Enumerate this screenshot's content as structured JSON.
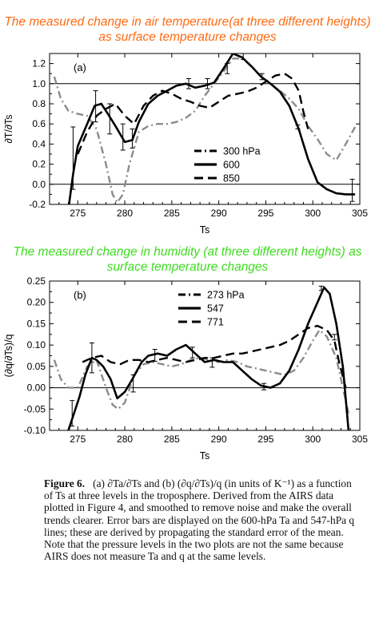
{
  "titles": {
    "air": {
      "text": "The measured change in air temperature(at three different heights) as surface temperature changes",
      "color": "#ff6a13"
    },
    "humidity": {
      "text": "The measured change in humidity (at three different heights) as surface temperature changes",
      "color": "#3ddc1f"
    }
  },
  "caption": {
    "label": "Figure 6.",
    "text": "(a) ∂Ta/∂Ts and (b) (∂q/∂Ts)/q (in units of K⁻¹) as a function of Ts at three levels in the troposphere. Derived from the AIRS data plotted in Figure 4, and smoothed to remove noise and make the overall trends clearer. Error bars are displayed on the 600-hPa Ta and 547-hPa q lines; these are derived by propagating the standard error of the mean. Note that the pressure levels in the two plots are not the same because AIRS does not measure Ta and q at the same levels."
  },
  "chart_data": [
    {
      "type": "line",
      "panel_label": "(a)",
      "xlabel": "Ts",
      "ylabel": "∂T/∂Ts",
      "xlim": [
        272,
        305
      ],
      "ylim": [
        -0.2,
        1.3
      ],
      "xticks": [
        275,
        280,
        285,
        290,
        295,
        300,
        305
      ],
      "yticks": [
        -0.2,
        0.0,
        0.2,
        0.4,
        0.6,
        0.8,
        1.0,
        1.2
      ],
      "ytick_labels": [
        "-0.2",
        "0.0",
        "0.2",
        "0.4",
        "0.6",
        "0.8",
        "1.0",
        "1.2"
      ],
      "hlines": [
        0.0,
        1.0
      ],
      "legend": {
        "position": "lower-right",
        "entries": [
          "300 hPa",
          "600",
          "850"
        ]
      },
      "series": [
        {
          "name": "300 hPa",
          "style": "dashdot",
          "x": [
            272.5,
            273.2,
            274,
            275,
            276,
            277,
            278,
            278.7,
            279.2,
            279.8,
            280.5,
            281.5,
            282.5,
            283.5,
            284.5,
            285.5,
            286.5,
            287.5,
            288.5,
            289.5,
            290.5,
            291.5,
            292.5,
            293.5,
            294.5,
            295.5,
            296.5,
            297.5,
            298.5,
            299.5,
            300.5,
            301.5,
            302.5,
            303.5,
            304.5
          ],
          "y": [
            1.07,
            0.85,
            0.73,
            0.7,
            0.68,
            0.55,
            0.2,
            -0.1,
            -0.18,
            -0.1,
            0.2,
            0.52,
            0.58,
            0.6,
            0.6,
            0.62,
            0.66,
            0.73,
            0.88,
            1.0,
            1.12,
            1.25,
            1.25,
            1.17,
            1.07,
            1.0,
            0.93,
            0.85,
            0.75,
            0.58,
            0.45,
            0.3,
            0.24,
            0.4,
            0.57
          ]
        },
        {
          "name": "600",
          "style": "solid",
          "x": [
            274,
            274.5,
            275,
            276,
            276.8,
            277.5,
            278.2,
            279,
            280,
            280.8,
            281.5,
            282.5,
            283.5,
            284.5,
            285.5,
            286.5,
            287.5,
            288.5,
            289.5,
            290.5,
            291.5,
            292.5,
            293.5,
            294.5,
            295.5,
            296.5,
            297.5,
            298.5,
            299.5,
            300.5,
            301.5,
            302.5,
            303.5,
            304.5
          ],
          "y": [
            -0.25,
            0.1,
            0.38,
            0.6,
            0.78,
            0.8,
            0.7,
            0.58,
            0.42,
            0.44,
            0.62,
            0.8,
            0.88,
            0.93,
            0.98,
            1.0,
            0.96,
            0.98,
            1.01,
            1.15,
            1.3,
            1.26,
            1.17,
            1.07,
            1.0,
            0.92,
            0.78,
            0.55,
            0.25,
            0.02,
            -0.05,
            -0.09,
            -0.1,
            -0.1
          ]
        },
        {
          "name": "850",
          "style": "dashed",
          "x": [
            275,
            276,
            277,
            278,
            279,
            280,
            281,
            282,
            283,
            284,
            285,
            286,
            287,
            288,
            289,
            290,
            291,
            292,
            293,
            294,
            295,
            296,
            297,
            297.8,
            298.5,
            299,
            299.5
          ],
          "y": [
            0.3,
            0.52,
            0.68,
            0.75,
            0.8,
            0.68,
            0.6,
            0.78,
            0.88,
            0.93,
            0.9,
            0.85,
            0.82,
            0.78,
            0.76,
            0.82,
            0.88,
            0.9,
            0.92,
            0.96,
            1.02,
            1.08,
            1.1,
            1.05,
            0.93,
            0.72,
            0.55
          ]
        }
      ],
      "error_bars": {
        "series": "600",
        "points": [
          {
            "x": 274.5,
            "lo": -0.05,
            "hi": 0.57
          },
          {
            "x": 276.9,
            "lo": 0.62,
            "hi": 0.93
          },
          {
            "x": 278.4,
            "lo": 0.5,
            "hi": 0.8
          },
          {
            "x": 279.8,
            "lo": 0.34,
            "hi": 0.6
          },
          {
            "x": 280.8,
            "lo": 0.36,
            "hi": 0.55
          },
          {
            "x": 286.8,
            "lo": 0.95,
            "hi": 1.05
          },
          {
            "x": 288.8,
            "lo": 0.95,
            "hi": 1.05
          },
          {
            "x": 290.9,
            "lo": 1.1,
            "hi": 1.2
          },
          {
            "x": 292.6,
            "lo": 1.24,
            "hi": 1.3
          },
          {
            "x": 294.6,
            "lo": 1.04,
            "hi": 1.1
          },
          {
            "x": 298.4,
            "lo": 0.55,
            "hi": 0.59
          },
          {
            "x": 304.2,
            "lo": -0.17,
            "hi": 0.05
          }
        ]
      }
    },
    {
      "type": "line",
      "panel_label": "(b)",
      "xlabel": "Ts",
      "ylabel": "(∂q/∂Ts)/q",
      "xlim": [
        272,
        305
      ],
      "ylim": [
        -0.1,
        0.25
      ],
      "xticks": [
        275,
        280,
        285,
        290,
        295,
        300,
        305
      ],
      "yticks": [
        -0.1,
        -0.05,
        0.0,
        0.05,
        0.1,
        0.15,
        0.2,
        0.25
      ],
      "ytick_labels": [
        "-0.10",
        "-0.05",
        "0.00",
        "0.05",
        "0.10",
        "0.15",
        "0.20",
        "0.25"
      ],
      "hlines": [
        0.0
      ],
      "legend": {
        "position": "top-center",
        "entries": [
          "273 hPa",
          "547",
          "771"
        ]
      },
      "series": [
        {
          "name": "273 hPa",
          "style": "dashdot",
          "x": [
            272.5,
            273.2,
            274,
            275,
            276,
            277,
            278,
            278.7,
            279.3,
            280,
            281,
            282,
            283,
            284,
            285,
            286,
            287,
            288,
            289,
            290,
            291,
            292,
            293,
            294,
            295,
            296,
            297,
            298,
            299,
            300,
            300.7,
            301.5,
            302.5,
            303.2,
            303.8
          ],
          "y": [
            0.065,
            0.02,
            0.0,
            0.0,
            0.05,
            0.065,
            0.0,
            -0.04,
            -0.05,
            -0.035,
            0.03,
            0.055,
            0.06,
            0.055,
            0.05,
            0.055,
            0.065,
            0.07,
            0.065,
            0.06,
            0.065,
            0.06,
            0.05,
            0.045,
            0.04,
            0.035,
            0.03,
            0.04,
            0.07,
            0.11,
            0.135,
            0.12,
            0.07,
            0.0,
            -0.06
          ]
        },
        {
          "name": "547",
          "style": "solid",
          "x": [
            274,
            274.6,
            275.2,
            275.8,
            276.5,
            277,
            277.7,
            278.5,
            279.2,
            280,
            280.8,
            281.8,
            282.5,
            283.5,
            284.5,
            285.5,
            286.5,
            287.5,
            288.5,
            289.5,
            290.5,
            291.5,
            292.5,
            293.5,
            294.5,
            295.5,
            296.5,
            297.5,
            298.5,
            299.5,
            300.5,
            301.2,
            301.8,
            302.5,
            303.2,
            303.8
          ],
          "y": [
            -0.1,
            -0.06,
            -0.02,
            0.03,
            0.07,
            0.065,
            0.05,
            0.02,
            -0.025,
            -0.01,
            0.02,
            0.06,
            0.075,
            0.08,
            0.075,
            0.09,
            0.1,
            0.08,
            0.06,
            0.065,
            0.06,
            0.06,
            0.04,
            0.02,
            0.005,
            0.0,
            0.01,
            0.04,
            0.09,
            0.15,
            0.2,
            0.235,
            0.22,
            0.15,
            0.05,
            -0.1
          ]
        },
        {
          "name": "771",
          "style": "dashed",
          "x": [
            275.5,
            276.5,
            277.5,
            278.5,
            279.5,
            280.5,
            281.5,
            282.5,
            283.5,
            284.5,
            285.5,
            286.5,
            287.5,
            288.5,
            289.5,
            290.5,
            291.5,
            292.5,
            293.5,
            294.5,
            295.5,
            296.5,
            297.5,
            298.5,
            299.5,
            300.5,
            301.5,
            302.3,
            302.8,
            303.5
          ],
          "y": [
            0.06,
            0.07,
            0.075,
            0.06,
            0.055,
            0.065,
            0.065,
            0.06,
            0.065,
            0.07,
            0.065,
            0.06,
            0.065,
            0.07,
            0.07,
            0.075,
            0.08,
            0.08,
            0.085,
            0.09,
            0.095,
            0.1,
            0.11,
            0.125,
            0.14,
            0.145,
            0.135,
            0.11,
            0.06,
            0.0
          ]
        }
      ],
      "error_bars": {
        "series": "547",
        "points": [
          {
            "x": 274.4,
            "lo": -0.09,
            "hi": -0.03
          },
          {
            "x": 276.5,
            "lo": 0.035,
            "hi": 0.105
          },
          {
            "x": 280.9,
            "lo": -0.01,
            "hi": 0.03
          },
          {
            "x": 283.2,
            "lo": 0.062,
            "hi": 0.09
          },
          {
            "x": 287.2,
            "lo": 0.07,
            "hi": 0.095
          },
          {
            "x": 289.3,
            "lo": 0.048,
            "hi": 0.07
          },
          {
            "x": 294.8,
            "lo": -0.005,
            "hi": 0.01
          },
          {
            "x": 300.9,
            "lo": 0.228,
            "hi": 0.238
          },
          {
            "x": 302.3,
            "lo": 0.112,
            "hi": 0.125
          }
        ]
      }
    }
  ]
}
